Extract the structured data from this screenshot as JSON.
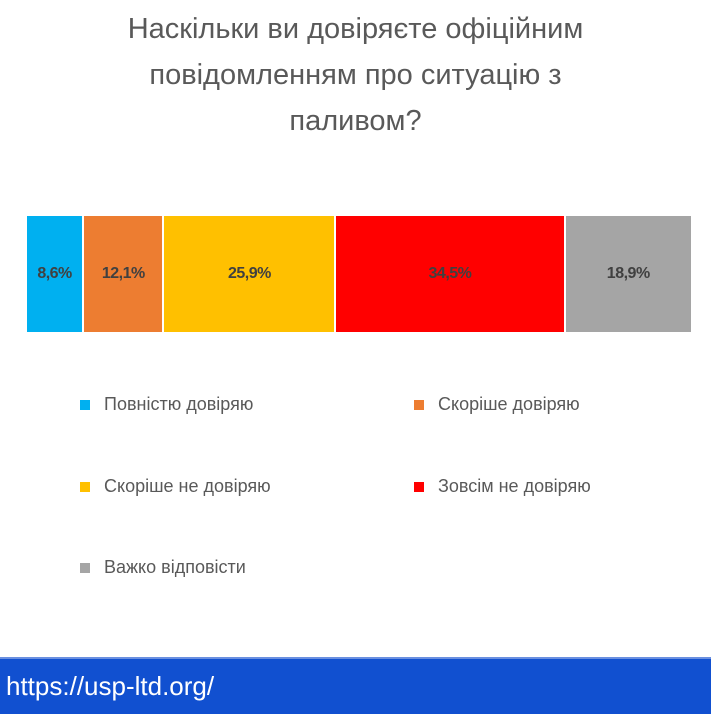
{
  "chart_data": {
    "type": "bar",
    "orientation": "horizontal-stacked-100",
    "title": "Наскільки ви довіряєте офіційним повідомленням про ситуацію з паливом?",
    "title_lines": [
      "Наскільки ви довіряєте офіційним",
      "повідомленням про ситуацію з",
      "паливом?"
    ],
    "series": [
      {
        "name": "Повністю довіряю",
        "value": 8.6,
        "label": "8,6%",
        "color": "#00b0f0"
      },
      {
        "name": "Скоріше довіряю",
        "value": 12.1,
        "label": "12,1%",
        "color": "#ed7d31"
      },
      {
        "name": "Скоріше не довіряю",
        "value": 25.9,
        "label": "25,9%",
        "color": "#ffc000"
      },
      {
        "name": "Зовсім не довіряю",
        "value": 34.5,
        "label": "34,5%",
        "color": "#ff0000"
      },
      {
        "name": "Важко відповісти",
        "value": 18.9,
        "label": "18,9%",
        "color": "#a5a5a5"
      }
    ],
    "legend_position": "bottom",
    "grid": false
  },
  "footer": {
    "url": "https://usp-ltd.org/",
    "color": "#1150d0"
  }
}
